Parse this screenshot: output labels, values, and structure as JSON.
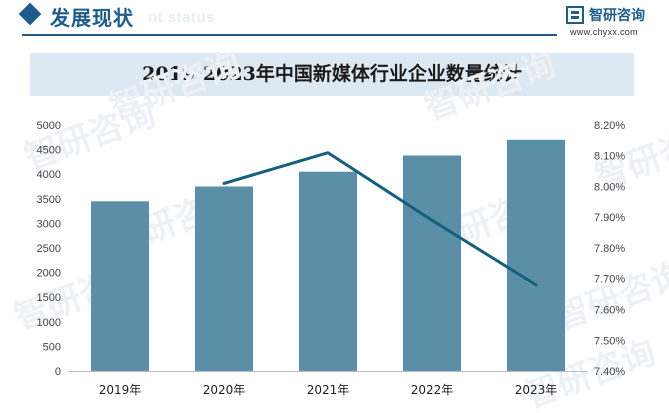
{
  "header": {
    "section_title": "发展现状",
    "section_subtitle": "nt status"
  },
  "brand": {
    "name": "智研咨询",
    "url": "www.chyxx.com",
    "watermark": "智研咨询"
  },
  "colors": {
    "brand": "#1e5c8a",
    "bar": "#5b8ea7",
    "line": "#15607e",
    "title_band": "#dde9f2"
  },
  "chart_data": {
    "type": "bar",
    "title": "2019-2023年中国新媒体行业企业数量统计",
    "categories": [
      "2019年",
      "2020年",
      "2021年",
      "2022年",
      "2023年"
    ],
    "series": [
      {
        "axis": "left",
        "type": "bar",
        "values": [
          3450,
          3750,
          4050,
          4380,
          4700
        ]
      },
      {
        "axis": "right",
        "type": "line",
        "values": [
          null,
          8.01,
          8.11,
          7.89,
          7.68
        ]
      }
    ],
    "y_left": {
      "min": 0,
      "max": 5000,
      "step": 500,
      "ticks": [
        "0",
        "500",
        "1000",
        "1500",
        "2000",
        "2500",
        "3000",
        "3500",
        "4000",
        "4500",
        "5000"
      ]
    },
    "y_right": {
      "min": 7.4,
      "max": 8.2,
      "step": 0.1,
      "ticks": [
        "7.40%",
        "7.50%",
        "7.60%",
        "7.70%",
        "7.80%",
        "7.90%",
        "8.00%",
        "8.10%",
        "8.20%"
      ]
    },
    "grid": false
  }
}
